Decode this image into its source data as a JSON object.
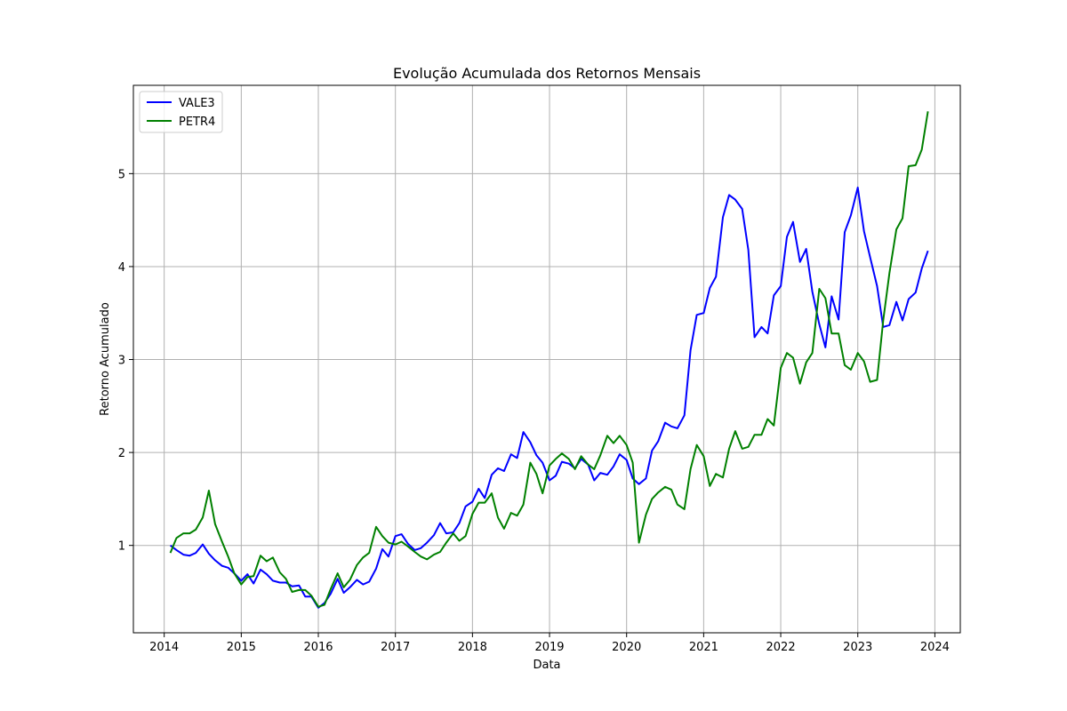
{
  "chart_data": {
    "type": "line",
    "title": "Evolução Acumulada dos Retornos Mensais",
    "xlabel": "Data",
    "ylabel": "Retorno Acumulado",
    "xlim": [
      2013.6,
      2024.33
    ],
    "ylim": [
      0.06,
      5.95
    ],
    "x_ticks": [
      2014,
      2015,
      2016,
      2017,
      2018,
      2019,
      2020,
      2021,
      2022,
      2023,
      2024
    ],
    "y_ticks": [
      1,
      2,
      3,
      4,
      5
    ],
    "grid": true,
    "legend_position": "top-left",
    "series": [
      {
        "name": "VALE3",
        "color": "#0000ff",
        "x": [
          2014.08,
          2014.16,
          2014.25,
          2014.33,
          2014.41,
          2014.5,
          2014.58,
          2014.66,
          2014.75,
          2014.83,
          2014.91,
          2015.0,
          2015.08,
          2015.16,
          2015.25,
          2015.33,
          2015.41,
          2015.5,
          2015.58,
          2015.66,
          2015.75,
          2015.83,
          2015.91,
          2016.0,
          2016.08,
          2016.16,
          2016.25,
          2016.33,
          2016.41,
          2016.5,
          2016.58,
          2016.66,
          2016.75,
          2016.83,
          2016.91,
          2017.0,
          2017.08,
          2017.16,
          2017.25,
          2017.33,
          2017.41,
          2017.5,
          2017.58,
          2017.66,
          2017.75,
          2017.83,
          2017.91,
          2018.0,
          2018.08,
          2018.16,
          2018.25,
          2018.33,
          2018.41,
          2018.5,
          2018.58,
          2018.66,
          2018.75,
          2018.83,
          2018.91,
          2019.0,
          2019.08,
          2019.16,
          2019.25,
          2019.33,
          2019.41,
          2019.5,
          2019.58,
          2019.66,
          2019.75,
          2019.83,
          2019.91,
          2020.0,
          2020.08,
          2020.16,
          2020.25,
          2020.33,
          2020.41,
          2020.5,
          2020.58,
          2020.66,
          2020.75,
          2020.83,
          2020.91,
          2021.0,
          2021.08,
          2021.16,
          2021.25,
          2021.33,
          2021.41,
          2021.5,
          2021.58,
          2021.66,
          2021.75,
          2021.83,
          2021.91,
          2022.0,
          2022.08,
          2022.16,
          2022.25,
          2022.33,
          2022.41,
          2022.5,
          2022.58,
          2022.66,
          2022.75,
          2022.83,
          2022.91,
          2023.0,
          2023.08,
          2023.16,
          2023.25,
          2023.33,
          2023.41,
          2023.5,
          2023.58,
          2023.66,
          2023.75,
          2023.83,
          2023.91
        ],
        "y": [
          1.0,
          0.95,
          0.9,
          0.89,
          0.92,
          1.01,
          0.91,
          0.84,
          0.78,
          0.76,
          0.7,
          0.62,
          0.69,
          0.59,
          0.74,
          0.69,
          0.62,
          0.6,
          0.6,
          0.56,
          0.57,
          0.45,
          0.45,
          0.33,
          0.38,
          0.48,
          0.64,
          0.49,
          0.55,
          0.63,
          0.58,
          0.61,
          0.75,
          0.96,
          0.88,
          1.1,
          1.12,
          1.02,
          0.95,
          0.97,
          1.03,
          1.11,
          1.24,
          1.13,
          1.14,
          1.24,
          1.42,
          1.47,
          1.61,
          1.51,
          1.76,
          1.83,
          1.8,
          1.98,
          1.94,
          2.22,
          2.11,
          1.97,
          1.89,
          1.7,
          1.75,
          1.9,
          1.88,
          1.83,
          1.93,
          1.87,
          1.7,
          1.78,
          1.76,
          1.85,
          1.98,
          1.92,
          1.72,
          1.66,
          1.72,
          2.02,
          2.12,
          2.32,
          2.28,
          2.26,
          2.4,
          3.1,
          3.48,
          3.5,
          3.77,
          3.89,
          4.53,
          4.77,
          4.72,
          4.62,
          4.18,
          3.24,
          3.35,
          3.28,
          3.69,
          3.79,
          4.32,
          4.48,
          4.05,
          4.19,
          3.73,
          3.38,
          3.13,
          3.68,
          3.43,
          4.37,
          4.55,
          4.85,
          4.38,
          4.1,
          3.79,
          3.35,
          3.37,
          3.62,
          3.42,
          3.65,
          3.72,
          3.98,
          4.17
        ]
      },
      {
        "name": "PETR4",
        "color": "#008000",
        "x": [
          2014.08,
          2014.16,
          2014.25,
          2014.33,
          2014.41,
          2014.5,
          2014.58,
          2014.66,
          2014.75,
          2014.83,
          2014.91,
          2015.0,
          2015.08,
          2015.16,
          2015.25,
          2015.33,
          2015.41,
          2015.5,
          2015.58,
          2015.66,
          2015.75,
          2015.83,
          2015.91,
          2016.0,
          2016.08,
          2016.16,
          2016.25,
          2016.33,
          2016.41,
          2016.5,
          2016.58,
          2016.66,
          2016.75,
          2016.83,
          2016.91,
          2017.0,
          2017.08,
          2017.16,
          2017.25,
          2017.33,
          2017.41,
          2017.5,
          2017.58,
          2017.66,
          2017.75,
          2017.83,
          2017.91,
          2018.0,
          2018.08,
          2018.16,
          2018.25,
          2018.33,
          2018.41,
          2018.5,
          2018.58,
          2018.66,
          2018.75,
          2018.83,
          2018.91,
          2019.0,
          2019.08,
          2019.16,
          2019.25,
          2019.33,
          2019.41,
          2019.5,
          2019.58,
          2019.66,
          2019.75,
          2019.83,
          2019.91,
          2020.0,
          2020.08,
          2020.16,
          2020.25,
          2020.33,
          2020.41,
          2020.5,
          2020.58,
          2020.66,
          2020.75,
          2020.83,
          2020.91,
          2021.0,
          2021.08,
          2021.16,
          2021.25,
          2021.33,
          2021.41,
          2021.5,
          2021.58,
          2021.66,
          2021.75,
          2021.83,
          2021.91,
          2022.0,
          2022.08,
          2022.16,
          2022.25,
          2022.33,
          2022.41,
          2022.5,
          2022.58,
          2022.66,
          2022.75,
          2022.83,
          2022.91,
          2023.0,
          2023.08,
          2023.16,
          2023.25,
          2023.33,
          2023.41,
          2023.5,
          2023.58,
          2023.66,
          2023.75,
          2023.83,
          2023.91
        ],
        "y": [
          0.92,
          1.08,
          1.13,
          1.13,
          1.17,
          1.3,
          1.59,
          1.23,
          1.04,
          0.88,
          0.7,
          0.58,
          0.66,
          0.67,
          0.89,
          0.83,
          0.87,
          0.71,
          0.64,
          0.5,
          0.52,
          0.52,
          0.46,
          0.34,
          0.36,
          0.53,
          0.7,
          0.55,
          0.63,
          0.79,
          0.87,
          0.92,
          1.2,
          1.1,
          1.03,
          1.01,
          1.04,
          0.99,
          0.93,
          0.88,
          0.85,
          0.9,
          0.93,
          1.03,
          1.13,
          1.05,
          1.1,
          1.34,
          1.46,
          1.46,
          1.56,
          1.3,
          1.18,
          1.35,
          1.32,
          1.44,
          1.89,
          1.77,
          1.56,
          1.86,
          1.93,
          1.99,
          1.93,
          1.82,
          1.96,
          1.87,
          1.82,
          1.97,
          2.18,
          2.1,
          2.18,
          2.08,
          1.89,
          1.03,
          1.33,
          1.5,
          1.57,
          1.63,
          1.6,
          1.44,
          1.39,
          1.82,
          2.08,
          1.96,
          1.64,
          1.77,
          1.73,
          2.04,
          2.23,
          2.04,
          2.06,
          2.19,
          2.19,
          2.36,
          2.29,
          2.91,
          3.07,
          3.02,
          2.74,
          2.97,
          3.07,
          3.76,
          3.66,
          3.28,
          3.28,
          2.94,
          2.89,
          3.07,
          2.98,
          2.76,
          2.78,
          3.42,
          3.93,
          4.4,
          4.52,
          5.08,
          5.09,
          5.26,
          5.67
        ]
      }
    ]
  }
}
